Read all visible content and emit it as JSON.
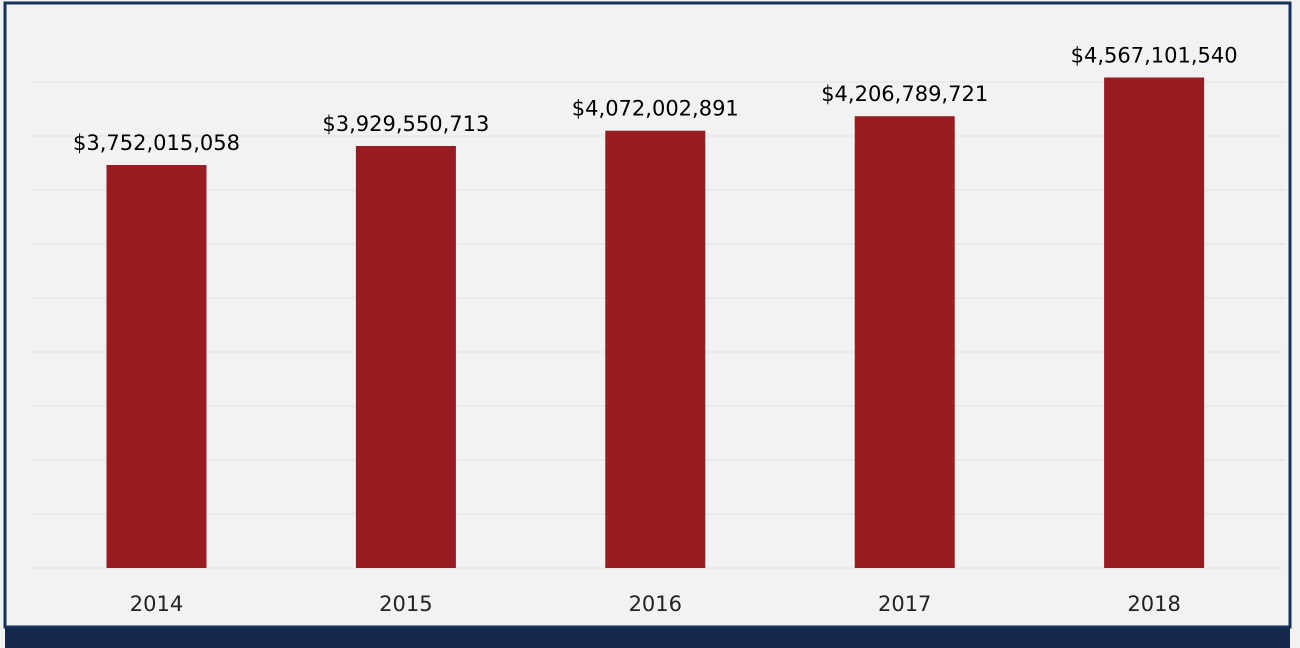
{
  "chart_data": {
    "type": "bar",
    "categories": [
      "2014",
      "2015",
      "2016",
      "2017",
      "2018"
    ],
    "values": [
      3752015058,
      3929550713,
      4072002891,
      4206789721,
      4567101540
    ],
    "data_labels": [
      "$3,752,015,058",
      "$3,929,550,713",
      "$4,072,002,891",
      "$4,206,789,721",
      "$4,567,101,540"
    ],
    "title": "",
    "xlabel": "",
    "ylabel": "",
    "ylim": [
      0,
      5000000000
    ],
    "grid": true,
    "legend": "none"
  },
  "colors": {
    "bar": "#981b22",
    "background": "#f2f2f2",
    "frame_border": "#16305a",
    "bottom_bar": "#15294d",
    "gridline": "#e3e3e3"
  }
}
